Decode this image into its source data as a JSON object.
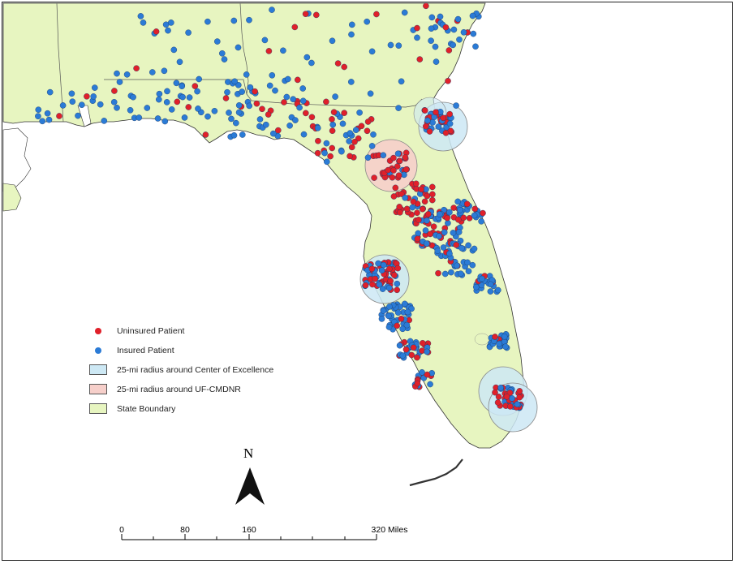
{
  "legend": {
    "items": [
      {
        "label": "Uninsured Patient",
        "kind": "dot",
        "color": "#e0202a"
      },
      {
        "label": "Insured Patient",
        "kind": "dot",
        "color": "#2b7bd6"
      },
      {
        "label": "25-mi radius around Center of Excellence",
        "kind": "swatch",
        "color": "#cde8f4"
      },
      {
        "label": "25-mi radius around UF-CMDNR",
        "kind": "swatch",
        "color": "#f6cfca"
      },
      {
        "label": "State Boundary",
        "kind": "swatch",
        "color": "#e7f5c0"
      }
    ]
  },
  "north_arrow": {
    "label": "N"
  },
  "scale_bar": {
    "labels": [
      "0",
      "80",
      "160",
      "320 Miles"
    ]
  },
  "colors": {
    "land": "#e7f5c0",
    "water": "#ffffff",
    "uninsured": "#e0202a",
    "insured": "#2b7bd6",
    "coe_radius": "#cde8f4",
    "uf_radius": "#f6cfca"
  }
}
